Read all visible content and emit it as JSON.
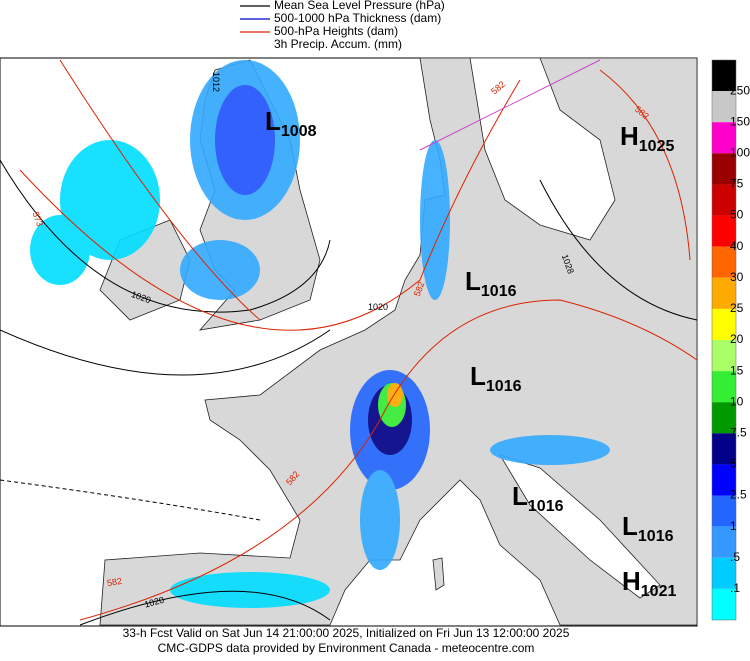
{
  "legend": [
    {
      "label": "Mean Sea Level Pressure (hPa)",
      "color": "#000000"
    },
    {
      "label": "500-1000 hPa Thickness (dam)",
      "color": "#0000cc"
    },
    {
      "label": "500-hPa Heights (dam)",
      "color": "#dd2200"
    },
    {
      "label": "3h Precip. Accum. (mm)"
    }
  ],
  "colorbar": [
    {
      "label": "250",
      "color": "#c8c8c8"
    },
    {
      "label": "150",
      "color": "#ff00cc"
    },
    {
      "label": "100",
      "color": "#990000"
    },
    {
      "label": "75",
      "color": "#cc0000"
    },
    {
      "label": "50",
      "color": "#ff0000"
    },
    {
      "label": "40",
      "color": "#ff6600"
    },
    {
      "label": "30",
      "color": "#ffaa00"
    },
    {
      "label": "25",
      "color": "#ffff00"
    },
    {
      "label": "20",
      "color": "#aaff66"
    },
    {
      "label": "15",
      "color": "#33ee33"
    },
    {
      "label": "10",
      "color": "#009900"
    },
    {
      "label": "7.5",
      "color": "#000088"
    },
    {
      "label": "5",
      "color": "#0000ff"
    },
    {
      "label": "2.5",
      "color": "#2266ff"
    },
    {
      "label": "1",
      "color": "#3399ff"
    },
    {
      "label": ".5",
      "color": "#00ccff"
    },
    {
      "label": ".1",
      "color": "#00ffff"
    }
  ],
  "centers": [
    {
      "letter": "L",
      "value": "1008"
    },
    {
      "letter": "H",
      "value": "1025"
    },
    {
      "letter": "L",
      "value": "1016"
    },
    {
      "letter": "L",
      "value": "1016"
    },
    {
      "letter": "L",
      "value": "1016"
    },
    {
      "letter": "L",
      "value": "1016"
    },
    {
      "letter": "H",
      "value": "1021"
    }
  ],
  "contour_labels": [
    "1012",
    "573",
    "1020",
    "1020",
    "582",
    "582",
    "582",
    "582",
    "582",
    "1020",
    "1028"
  ],
  "footer": [
    "33-h Fcst Valid on Sat Jun 14 21:00:00 2025, Initialized on Fri Jun 13 12:00:00 2025",
    "CMC-GDPS data provided by Environment Canada - meteocentre.com"
  ]
}
